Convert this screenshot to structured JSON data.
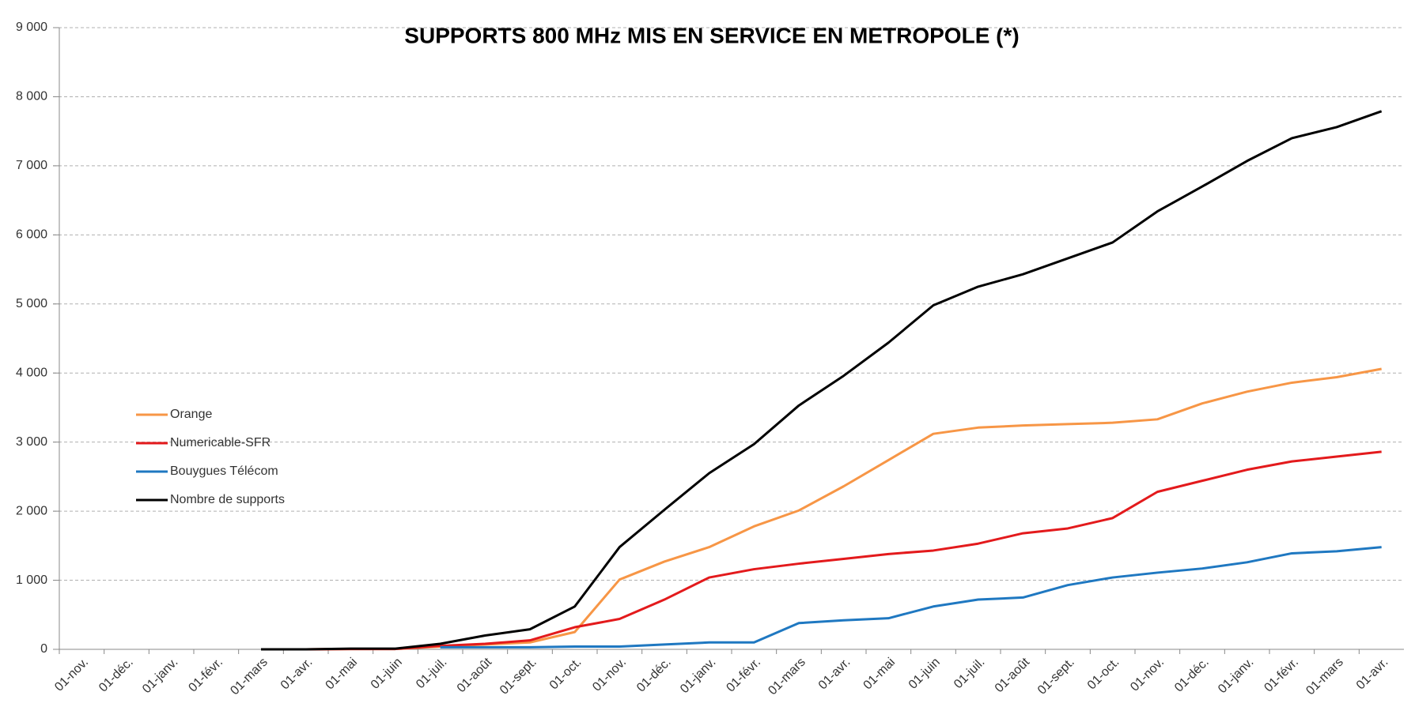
{
  "chart_data": {
    "type": "line",
    "title": "SUPPORTS 800 MHz MIS EN SERVICE EN METROPOLE (*)",
    "categories": [
      "01-nov.",
      "01-déc.",
      "01-janv.",
      "01-févr.",
      "01-mars",
      "01-avr.",
      "01-mai",
      "01-juin",
      "01-juil.",
      "01-août",
      "01-sept.",
      "01-oct.",
      "01-nov.",
      "01-déc.",
      "01-janv.",
      "01-févr.",
      "01-mars",
      "01-avr.",
      "01-mai",
      "01-juin",
      "01-juil.",
      "01-août",
      "01-sept.",
      "01-oct.",
      "01-nov.",
      "01-déc.",
      "01-janv.",
      "01-févr.",
      "01-mars",
      "01-avr."
    ],
    "series": [
      {
        "name": "Orange",
        "color": "#f79646",
        "values": [
          null,
          null,
          null,
          null,
          0,
          0,
          5,
          5,
          40,
          70,
          100,
          250,
          1010,
          1270,
          1480,
          1780,
          2010,
          2360,
          2740,
          3120,
          3210,
          3240,
          3260,
          3280,
          3330,
          3560,
          3730,
          3860,
          3940,
          4060
        ]
      },
      {
        "name": "Numericable-SFR",
        "color": "#e31a1c",
        "values": [
          null,
          null,
          null,
          null,
          0,
          0,
          5,
          5,
          50,
          80,
          130,
          320,
          440,
          720,
          1040,
          1160,
          1240,
          1310,
          1380,
          1430,
          1530,
          1680,
          1750,
          1900,
          2280,
          2440,
          2600,
          2720,
          2790,
          2860
        ]
      },
      {
        "name": "Bouygues Télécom",
        "color": "#1f78c1",
        "values": [
          null,
          null,
          null,
          null,
          null,
          null,
          null,
          null,
          30,
          30,
          30,
          40,
          40,
          70,
          100,
          100,
          380,
          420,
          450,
          620,
          720,
          750,
          930,
          1040,
          1110,
          1170,
          1260,
          1390,
          1420,
          1480
        ]
      },
      {
        "name": "Nombre de supports",
        "color": "#000000",
        "values": [
          null,
          null,
          null,
          null,
          0,
          0,
          10,
          10,
          80,
          200,
          290,
          620,
          1480,
          2020,
          2550,
          2970,
          3530,
          3960,
          4440,
          4980,
          5250,
          5430,
          5660,
          5890,
          6340,
          6700,
          7070,
          7400,
          7560,
          7790
        ]
      }
    ],
    "ylim": [
      0,
      9000
    ],
    "yticks": [
      0,
      {
        "value": 1000,
        "label": "1 000"
      },
      {
        "value": 2000,
        "label": "2 000"
      },
      {
        "value": 3000,
        "label": "3 000"
      },
      {
        "value": 4000,
        "label": "4 000"
      },
      {
        "value": 5000,
        "label": "5 000"
      },
      {
        "value": 6000,
        "label": "6 000"
      },
      {
        "value": 7000,
        "label": "7 000"
      },
      {
        "value": 8000,
        "label": "8 000"
      },
      {
        "value": 9000,
        "label": "9 000"
      }
    ],
    "grid": true,
    "legend": "left"
  }
}
